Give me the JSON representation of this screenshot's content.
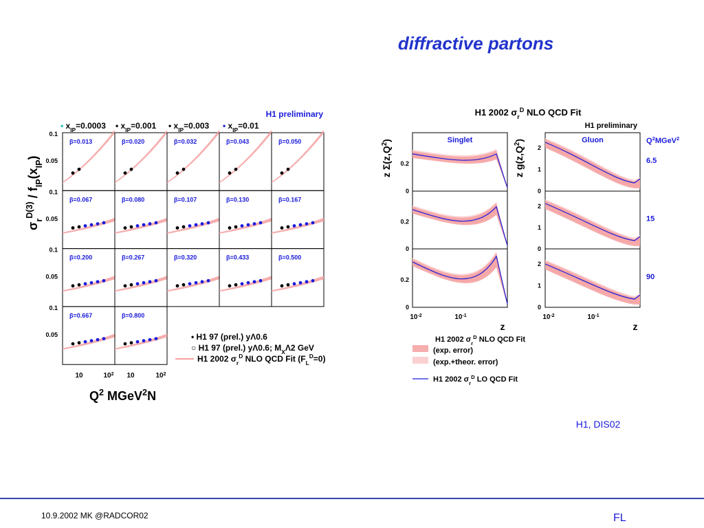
{
  "slide": {
    "title": "diffractive partons",
    "note": "H1, DIS02",
    "footer_left": "10.9.2002 MK @RADCOR02",
    "footer_right": "FL"
  },
  "left_figure": {
    "header": "H1 preliminary",
    "legend_top": [
      {
        "x": "x",
        "sub": "IP",
        "rest": "=0.0003",
        "color": "#22bbbb"
      },
      {
        "x": "x",
        "sub": "IP",
        "rest": "=0.001",
        "color": "#000000"
      },
      {
        "x": "x",
        "sub": "IP",
        "rest": "=0.003",
        "color": "#000000"
      },
      {
        "x": "x",
        "sub": "IP",
        "rest": "=0.01",
        "color": "#1a1adb"
      }
    ],
    "panels": [
      "β=0.013",
      "β=0.020",
      "β=0.032",
      "β=0.043",
      "β=0.050",
      "β=0.067",
      "β=0.080",
      "β=0.107",
      "β=0.130",
      "β=0.167",
      "β=0.200",
      "β=0.267",
      "β=0.320",
      "β=0.433",
      "β=0.500",
      "β=0.667",
      "β=0.800"
    ],
    "y_ticks": [
      "0.1",
      "0.05"
    ],
    "x_ticks": [
      [
        "10"
      ],
      [
        "10",
        "2"
      ]
    ],
    "y_label": [
      "σ",
      "r",
      "D(3)",
      " / f",
      "IP",
      "(x",
      "IP",
      ")"
    ],
    "x_label": [
      "Q",
      "2",
      " MGeV",
      "2",
      "N"
    ],
    "legend": [
      [
        "• H1 97 (prel.) yΛ0.6"
      ],
      [
        "○ H1 97 (prel.) yΛ0.6; M",
        "X",
        "Λ2 GeV"
      ],
      [
        "H1 2002 σ",
        "r",
        "D",
        " NLO QCD Fit (F",
        "L",
        "D",
        "=0)"
      ]
    ]
  },
  "right_figure": {
    "title": [
      "H1 2002 σ",
      "r",
      "D",
      " NLO QCD Fit"
    ],
    "header": "H1 preliminary",
    "columns": [
      "Singlet",
      "Gluon"
    ],
    "y_labels": [
      [
        "z Σ(z,Q",
        "2",
        ")"
      ],
      [
        "z g(z,Q",
        "2",
        ")"
      ]
    ],
    "q2_header": [
      "Q",
      "2",
      "MGeV",
      "2"
    ],
    "q2_values": [
      "6.5",
      "15",
      "90"
    ],
    "singlet_ticks": [
      "0.2",
      "0"
    ],
    "gluon_ticks": [
      "2",
      "1",
      "0"
    ],
    "x_ticks": [
      [
        "10",
        "-2"
      ],
      [
        "10",
        "-1"
      ]
    ],
    "x_label": "z",
    "legend": [
      [
        "H1 2002 σ",
        "r",
        "D",
        " NLO QCD Fit"
      ],
      [
        "(exp. error)"
      ],
      [
        "(exp.+theor. error)"
      ],
      [
        "H1 2002 σ",
        "r",
        "D",
        " LO QCD Fit"
      ]
    ]
  }
}
